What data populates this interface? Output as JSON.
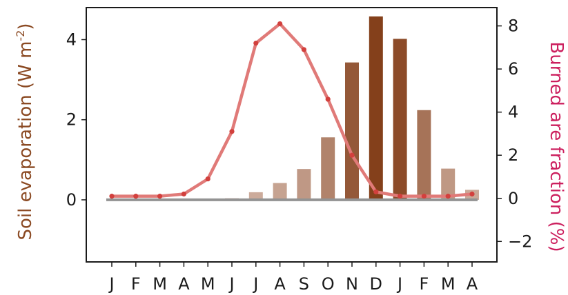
{
  "chart_data": {
    "type": "bar+line",
    "categories": [
      "J",
      "F",
      "M",
      "A",
      "M",
      "J",
      "J",
      "A",
      "S",
      "O",
      "N",
      "D",
      "J",
      "F",
      "M",
      "A"
    ],
    "bar_series": {
      "name": "Soil evaporation",
      "values": [
        0.0,
        0.0,
        0.0,
        0.0,
        0.0,
        0.04,
        0.19,
        0.42,
        0.77,
        1.56,
        3.43,
        4.58,
        4.02,
        2.24,
        0.78,
        0.25
      ]
    },
    "line_series": {
      "name": "Burned area fraction",
      "values": [
        0.1,
        0.1,
        0.1,
        0.2,
        0.9,
        3.1,
        7.2,
        8.1,
        6.9,
        4.6,
        2.0,
        0.3,
        0.1,
        0.1,
        0.1,
        0.2
      ]
    },
    "left_axis": {
      "label_text": "Soil evaporation (W m",
      "label_superscript": "-2",
      "label_close": ")",
      "ylim": [
        -1.55,
        4.8
      ],
      "ticks": [
        0,
        2,
        4
      ],
      "tick_labels": [
        "0",
        "2",
        "4"
      ]
    },
    "right_axis": {
      "label": "Burned are fraction (%)",
      "ylim": [
        -2.95,
        8.85
      ],
      "ticks": [
        -2,
        0,
        2,
        4,
        6,
        8
      ],
      "tick_labels": [
        "−2",
        "0",
        "2",
        "4",
        "6",
        "8"
      ]
    },
    "colors": {
      "left_axis_label": "#8b4a23",
      "right_axis_label": "#cc1f5e",
      "line": "#e07a78",
      "line_marker": "#d2403d",
      "bar_light": "#d2b4a6",
      "bar_dark": "#84401b",
      "zero_line": "#939393"
    },
    "grid": false,
    "legend": "none"
  }
}
